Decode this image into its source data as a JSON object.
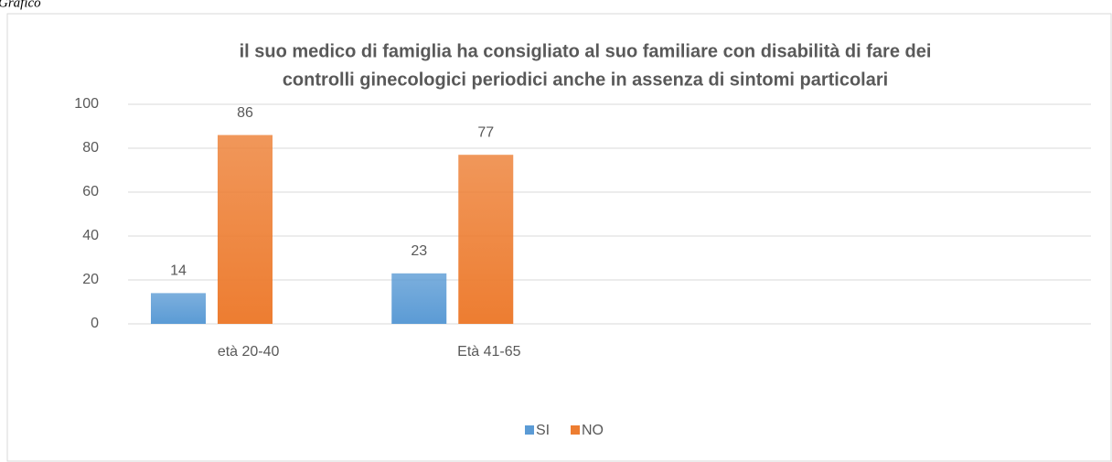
{
  "caption": "Grafico",
  "chart_data": {
    "type": "bar",
    "title": [
      "il suo medico di famiglia ha consigliato al suo familiare con disabilità di fare dei",
      "controlli ginecologici periodici anche in assenza di sintomi particolari"
    ],
    "categories": [
      "età 20-40",
      "Età 41-65",
      null,
      null
    ],
    "series": [
      {
        "name": "SI",
        "color": "#5b9bd5",
        "values": [
          14,
          23,
          null,
          null
        ]
      },
      {
        "name": "NO",
        "color": "#ed7d31",
        "values": [
          86,
          77,
          null,
          null
        ]
      }
    ],
    "ylim": [
      0,
      100
    ],
    "yticks": [
      0,
      20,
      40,
      60,
      80,
      100
    ],
    "grid": true,
    "legend": "bottom"
  }
}
